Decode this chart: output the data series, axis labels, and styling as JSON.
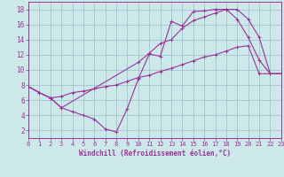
{
  "xlabel": "Windchill (Refroidissement éolien,°C)",
  "bg_color": "#cce8e8",
  "line_color": "#993399",
  "grid_color": "#99bbcc",
  "axis_color": "#993399",
  "xlim": [
    0,
    23
  ],
  "ylim": [
    1,
    19
  ],
  "xticks": [
    0,
    1,
    2,
    3,
    4,
    5,
    6,
    7,
    8,
    9,
    10,
    11,
    12,
    13,
    14,
    15,
    16,
    17,
    18,
    19,
    20,
    21,
    22,
    23
  ],
  "yticks": [
    2,
    4,
    6,
    8,
    10,
    12,
    14,
    16,
    18
  ],
  "curve1_x": [
    0,
    1,
    2,
    3,
    4,
    5,
    6,
    7,
    8,
    9,
    10,
    11,
    12,
    13,
    14,
    15,
    16,
    17,
    18,
    19,
    20,
    21,
    22,
    23
  ],
  "curve1_y": [
    7.8,
    7.0,
    6.3,
    5.0,
    4.5,
    4.0,
    3.5,
    2.2,
    1.8,
    4.9,
    8.8,
    12.1,
    11.8,
    16.4,
    15.8,
    17.7,
    17.8,
    18.0,
    18.0,
    16.7,
    14.3,
    11.3,
    9.5,
    9.5
  ],
  "curve2_x": [
    0,
    1,
    2,
    3,
    4,
    5,
    6,
    7,
    8,
    9,
    10,
    11,
    12,
    13,
    14,
    15,
    16,
    17,
    18,
    19,
    20,
    21,
    22,
    23
  ],
  "curve2_y": [
    7.8,
    7.0,
    6.3,
    6.5,
    7.0,
    7.2,
    7.5,
    7.8,
    8.0,
    8.5,
    9.0,
    9.3,
    9.8,
    10.2,
    10.7,
    11.2,
    11.7,
    12.0,
    12.5,
    13.0,
    13.2,
    9.5,
    9.5,
    9.5
  ],
  "curve3_x": [
    0,
    1,
    2,
    3,
    10,
    11,
    12,
    13,
    14,
    15,
    16,
    17,
    18,
    19,
    20,
    21,
    22,
    23
  ],
  "curve3_y": [
    7.8,
    7.0,
    6.3,
    5.0,
    11.0,
    12.2,
    13.5,
    14.0,
    15.5,
    16.5,
    17.0,
    17.5,
    18.0,
    18.0,
    16.7,
    14.3,
    9.5,
    9.5
  ],
  "tick_fontsize": 5,
  "xlabel_fontsize": 5.5,
  "marker_size": 2.5,
  "line_width": 0.8
}
